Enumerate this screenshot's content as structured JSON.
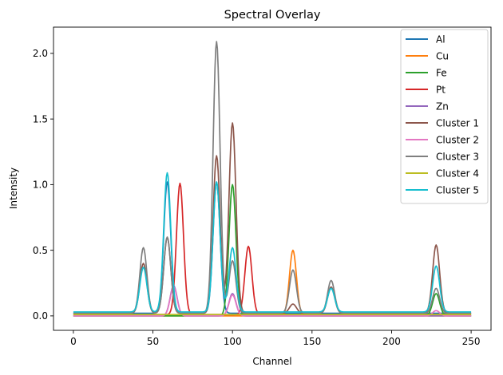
{
  "chart_data": {
    "type": "line",
    "title": "Spectral Overlay",
    "xlabel": "Channel",
    "ylabel": "Intensity",
    "xlim": [
      -12.5,
      262.5
    ],
    "ylim": [
      -0.11,
      2.2
    ],
    "x_ticks": [
      0,
      50,
      100,
      150,
      200,
      250
    ],
    "y_ticks": [
      0.0,
      0.5,
      1.0,
      1.5,
      2.0
    ],
    "x_tick_labels": [
      "0",
      "50",
      "100",
      "150",
      "200",
      "250"
    ],
    "y_tick_labels": [
      "0.0",
      "0.5",
      "1.0",
      "1.5",
      "2.0"
    ],
    "grid": false,
    "legend_position": "top-right",
    "x_range": [
      0,
      250
    ],
    "line_width": 1.7,
    "series": [
      {
        "name": "Al",
        "color": "#1f77b4",
        "baseline": 0.02,
        "peaks": [
          {
            "center": 59,
            "height": 1.0,
            "width": 2.2
          },
          {
            "center": 90,
            "height": 1.0,
            "width": 2.2
          }
        ]
      },
      {
        "name": "Cu",
        "color": "#ff7f0e",
        "baseline": 0.0,
        "peaks": [
          {
            "center": 138,
            "height": 0.5,
            "width": 2.2
          }
        ]
      },
      {
        "name": "Fe",
        "color": "#2ca02c",
        "baseline": 0.0,
        "peaks": [
          {
            "center": 100,
            "height": 1.0,
            "width": 2.2
          },
          {
            "center": 228,
            "height": 0.17,
            "width": 2.2
          }
        ]
      },
      {
        "name": "Pt",
        "color": "#d62728",
        "baseline": 0.01,
        "peaks": [
          {
            "center": 67,
            "height": 1.0,
            "width": 2.2
          },
          {
            "center": 110,
            "height": 0.52,
            "width": 2.2
          }
        ]
      },
      {
        "name": "Zn",
        "color": "#9467bd",
        "baseline": 0.0,
        "peaks": [
          {
            "center": 63,
            "height": 0.23,
            "width": 2.2
          },
          {
            "center": 100,
            "height": 0.17,
            "width": 2.2
          }
        ]
      },
      {
        "name": "Cluster 1",
        "color": "#8c564b",
        "baseline": 0.02,
        "peaks": [
          {
            "center": 44,
            "height": 0.38,
            "width": 2.2
          },
          {
            "center": 59,
            "height": 0.58,
            "width": 2.2
          },
          {
            "center": 90,
            "height": 1.2,
            "width": 2.2
          },
          {
            "center": 100,
            "height": 1.45,
            "width": 2.2
          },
          {
            "center": 138,
            "height": 0.07,
            "width": 2.2
          },
          {
            "center": 162,
            "height": 0.2,
            "width": 2.2
          },
          {
            "center": 228,
            "height": 0.52,
            "width": 2.2
          }
        ]
      },
      {
        "name": "Cluster 2",
        "color": "#e377c2",
        "baseline": 0.0,
        "peaks": [
          {
            "center": 63,
            "height": 0.22,
            "width": 2.2
          },
          {
            "center": 100,
            "height": 0.16,
            "width": 2.2
          },
          {
            "center": 228,
            "height": 0.04,
            "width": 2.2
          }
        ]
      },
      {
        "name": "Cluster 3",
        "color": "#7f7f7f",
        "baseline": 0.02,
        "peaks": [
          {
            "center": 44,
            "height": 0.5,
            "width": 2.2
          },
          {
            "center": 59,
            "height": 0.58,
            "width": 2.2
          },
          {
            "center": 90,
            "height": 2.07,
            "width": 2.2
          },
          {
            "center": 100,
            "height": 0.4,
            "width": 2.2
          },
          {
            "center": 138,
            "height": 0.33,
            "width": 2.2
          },
          {
            "center": 162,
            "height": 0.25,
            "width": 2.2
          },
          {
            "center": 228,
            "height": 0.19,
            "width": 2.2
          }
        ]
      },
      {
        "name": "Cluster 4",
        "color": "#bcbd22",
        "baseline": 0.01,
        "peaks": []
      },
      {
        "name": "Cluster 5",
        "color": "#17becf",
        "baseline": 0.03,
        "peaks": [
          {
            "center": 44,
            "height": 0.34,
            "width": 2.2
          },
          {
            "center": 59,
            "height": 1.06,
            "width": 2.2
          },
          {
            "center": 90,
            "height": 0.99,
            "width": 2.2
          },
          {
            "center": 100,
            "height": 0.49,
            "width": 2.2
          },
          {
            "center": 162,
            "height": 0.18,
            "width": 2.2
          },
          {
            "center": 228,
            "height": 0.35,
            "width": 2.2
          }
        ]
      }
    ]
  }
}
